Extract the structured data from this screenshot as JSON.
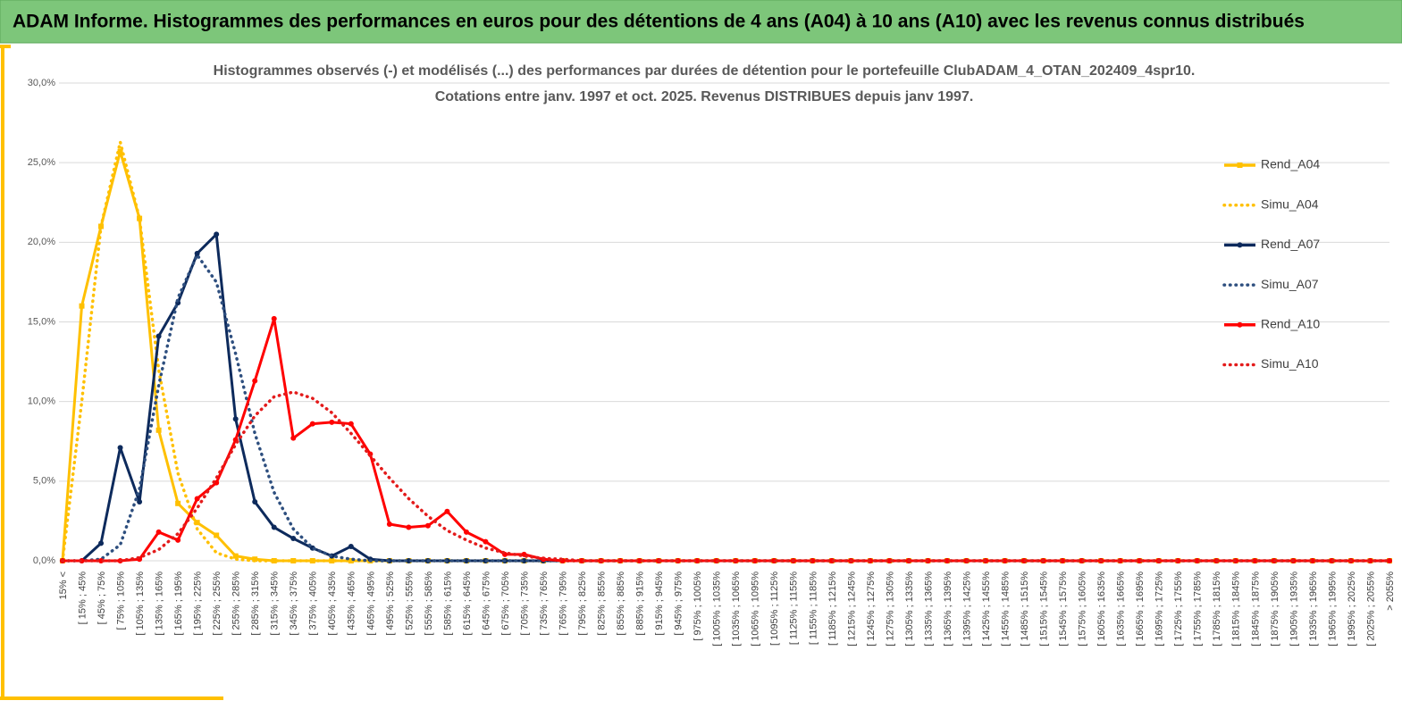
{
  "header": {
    "title": "ADAM Informe. Histogrammes des performances en euros pour des détentions de 4 ans (A04) à 10 ans (A10) avec les revenus connus distribués"
  },
  "chart_data": {
    "type": "line",
    "title": [
      "Histogrammes observés (-) et modélisés (...) des performances par durées de détention pour le portefeuille ClubADAM_4_OTAN_202409_4spr10.",
      "Cotations entre janv. 1997 et oct. 2025. Revenus DISTRIBUES depuis janv 1997."
    ],
    "categories": [
      "15% <",
      "[ 15% ; 45%",
      "[ 45% ; 75%",
      "[ 75% ; 105%",
      "[ 105% ; 135%",
      "[ 135% ; 165%",
      "[ 165% ; 195%",
      "[ 195% ; 225%",
      "[ 225% ; 255%",
      "[ 255% ; 285%",
      "[ 285% ; 315%",
      "[ 315% ; 345%",
      "[ 345% ; 375%",
      "[ 375% ; 405%",
      "[ 405% ; 435%",
      "[ 435% ; 465%",
      "[ 465% ; 495%",
      "[ 495% ; 525%",
      "[ 525% ; 555%",
      "[ 555% ; 585%",
      "[ 585% ; 615%",
      "[ 615% ; 645%",
      "[ 645% ; 675%",
      "[ 675% ; 705%",
      "[ 705% ; 735%",
      "[ 735% ; 765%",
      "[ 765% ; 795%",
      "[ 795% ; 825%",
      "[ 825% ; 855%",
      "[ 855% ; 885%",
      "[ 885% ; 915%",
      "[ 915% ; 945%",
      "[ 945% ; 975%",
      "[ 975% ; 1005%",
      "[ 1005% ; 1035%",
      "[ 1035% ; 1065%",
      "[ 1065% ; 1095%",
      "[ 1095% ; 1125%",
      "[ 1125% ; 1155%",
      "[ 1155% ; 1185%",
      "[ 1185% ; 1215%",
      "[ 1215% ; 1245%",
      "[ 1245% ; 1275%",
      "[ 1275% ; 1305%",
      "[ 1305% ; 1335%",
      "[ 1335% ; 1365%",
      "[ 1365% ; 1395%",
      "[ 1395% ; 1425%",
      "[ 1425% ; 1455%",
      "[ 1455% ; 1485%",
      "[ 1485% ; 1515%",
      "[ 1515% ; 1545%",
      "[ 1545% ; 1575%",
      "[ 1575% ; 1605%",
      "[ 1605% ; 1635%",
      "[ 1635% ; 1665%",
      "[ 1665% ; 1695%",
      "[ 1695% ; 1725%",
      "[ 1725% ; 1755%",
      "[ 1755% ; 1785%",
      "[ 1785% ; 1815%",
      "[ 1815% ; 1845%",
      "[ 1845% ; 1875%",
      "[ 1875% ; 1905%",
      "[ 1905% ; 1935%",
      "[ 1935% ; 1965%",
      "[ 1965% ; 1995%",
      "[ 1995% ; 2025%",
      "[ 2025% ; 2055%",
      "> 2055%"
    ],
    "series": [
      {
        "name": "Rend_A04",
        "color": "#ffc000",
        "style": "solid",
        "marker": "square",
        "values": [
          0,
          16,
          21,
          25.7,
          21.5,
          8.2,
          3.6,
          2.4,
          1.6,
          0.3,
          0.1,
          0,
          0,
          0,
          0,
          0,
          0,
          0,
          0,
          0,
          0,
          0,
          0,
          0,
          0,
          0,
          0,
          0,
          0,
          0,
          0,
          0,
          0,
          0,
          0,
          0,
          0,
          0,
          0,
          0,
          0,
          0,
          0,
          0,
          0,
          0,
          0,
          0,
          0,
          0,
          0,
          0,
          0,
          0,
          0,
          0,
          0,
          0,
          0,
          0,
          0,
          0,
          0,
          0,
          0,
          0,
          0,
          0,
          0,
          0
        ]
      },
      {
        "name": "Simu_A04",
        "color": "#ffc000",
        "style": "dotted",
        "marker": "none",
        "values": [
          0,
          10,
          21,
          26.3,
          21.5,
          12,
          5.5,
          2,
          0.5,
          0.1,
          0,
          0,
          0,
          0,
          0,
          0,
          0,
          0,
          0,
          0,
          0,
          0,
          0,
          0,
          0,
          0,
          0,
          0,
          0,
          0,
          0,
          0,
          0,
          0,
          0,
          0,
          0,
          0,
          0,
          0,
          0,
          0,
          0,
          0,
          0,
          0,
          0,
          0,
          0,
          0,
          0,
          0,
          0,
          0,
          0,
          0,
          0,
          0,
          0,
          0,
          0,
          0,
          0,
          0,
          0,
          0,
          0,
          0,
          0,
          0
        ]
      },
      {
        "name": "Rend_A07",
        "color": "#0d2a5c",
        "style": "solid",
        "marker": "circle",
        "values": [
          0,
          0,
          1.1,
          7.1,
          3.7,
          14.1,
          16.2,
          19.3,
          20.5,
          8.9,
          3.7,
          2.1,
          1.4,
          0.8,
          0.3,
          0.9,
          0.1,
          0,
          0,
          0,
          0,
          0,
          0,
          0,
          0,
          0,
          0,
          0,
          0,
          0,
          0,
          0,
          0,
          0,
          0,
          0,
          0,
          0,
          0,
          0,
          0,
          0,
          0,
          0,
          0,
          0,
          0,
          0,
          0,
          0,
          0,
          0,
          0,
          0,
          0,
          0,
          0,
          0,
          0,
          0,
          0,
          0,
          0,
          0,
          0,
          0,
          0,
          0,
          0,
          0
        ]
      },
      {
        "name": "Simu_A07",
        "color": "#2e4f7f",
        "style": "dotted",
        "marker": "none",
        "values": [
          0,
          0,
          0.1,
          1,
          4.5,
          11,
          16.5,
          19.2,
          17.5,
          13,
          8,
          4.3,
          2,
          0.8,
          0.3,
          0.1,
          0,
          0,
          0,
          0,
          0,
          0,
          0,
          0,
          0,
          0,
          0,
          0,
          0,
          0,
          0,
          0,
          0,
          0,
          0,
          0,
          0,
          0,
          0,
          0,
          0,
          0,
          0,
          0,
          0,
          0,
          0,
          0,
          0,
          0,
          0,
          0,
          0,
          0,
          0,
          0,
          0,
          0,
          0,
          0,
          0,
          0,
          0,
          0,
          0,
          0,
          0,
          0,
          0,
          0
        ]
      },
      {
        "name": "Rend_A10",
        "color": "#ff0000",
        "style": "solid",
        "marker": "circle",
        "values": [
          0,
          0,
          0,
          0,
          0.1,
          1.8,
          1.3,
          3.9,
          4.9,
          7.6,
          11.3,
          15.2,
          7.7,
          8.6,
          8.7,
          8.6,
          6.7,
          2.3,
          2.1,
          2.2,
          3.1,
          1.8,
          1.2,
          0.4,
          0.4,
          0.1,
          0,
          0,
          0,
          0,
          0,
          0,
          0,
          0,
          0,
          0,
          0,
          0,
          0,
          0,
          0,
          0,
          0,
          0,
          0,
          0,
          0,
          0,
          0,
          0,
          0,
          0,
          0,
          0,
          0,
          0,
          0,
          0,
          0,
          0,
          0,
          0,
          0,
          0,
          0,
          0,
          0,
          0,
          0,
          0
        ]
      },
      {
        "name": "Simu_A10",
        "color": "#e31b1b",
        "style": "dotted",
        "marker": "none",
        "values": [
          0,
          0,
          0,
          0,
          0.2,
          0.7,
          1.7,
          3.3,
          5.2,
          7.3,
          9.1,
          10.3,
          10.6,
          10.2,
          9.3,
          8,
          6.6,
          5.2,
          3.9,
          2.8,
          1.9,
          1.3,
          0.8,
          0.5,
          0.3,
          0.15,
          0.1,
          0,
          0,
          0,
          0,
          0,
          0,
          0,
          0,
          0,
          0,
          0,
          0,
          0,
          0,
          0,
          0,
          0,
          0,
          0,
          0,
          0,
          0,
          0,
          0,
          0,
          0,
          0,
          0,
          0,
          0,
          0,
          0,
          0,
          0,
          0,
          0,
          0,
          0,
          0,
          0,
          0,
          0,
          0
        ]
      }
    ],
    "ylim": [
      0,
      30
    ],
    "yticks": [
      {
        "value": 0,
        "label": "0,0%"
      },
      {
        "value": 5,
        "label": "5,0%"
      },
      {
        "value": 10,
        "label": "10,0%"
      },
      {
        "value": 15,
        "label": "15,0%"
      },
      {
        "value": 20,
        "label": "20,0%"
      },
      {
        "value": 25,
        "label": "25,0%"
      },
      {
        "value": 30,
        "label": "30,0%"
      }
    ],
    "grid": true,
    "legend": "right"
  }
}
